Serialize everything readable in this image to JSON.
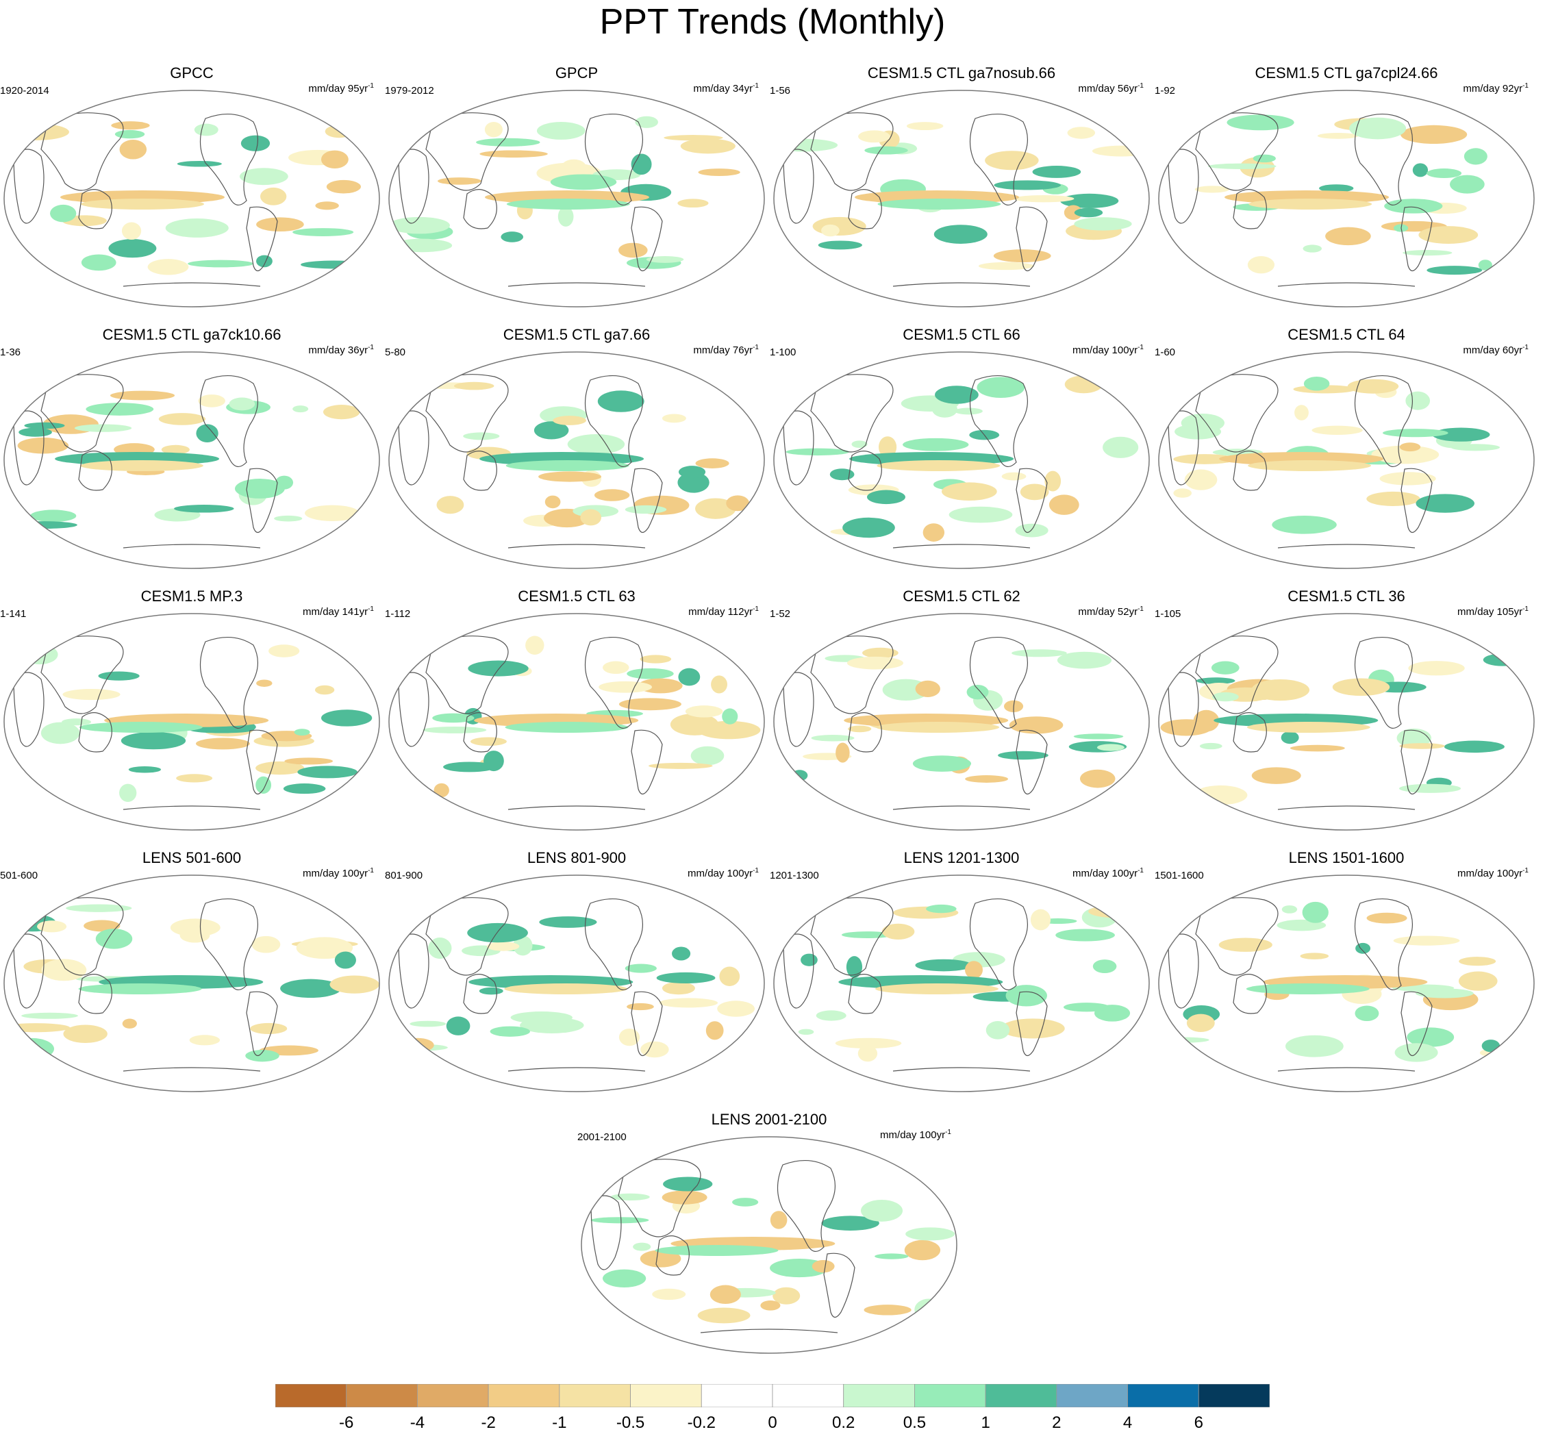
{
  "title": "PPT Trends (Monthly)",
  "units_prefix": "mm/day ",
  "units_suffix": "yr",
  "units_exponent": "-1",
  "colors": {
    "land_outline": "#555555",
    "frame": "#777777",
    "dry": [
      "#b96a2b",
      "#cd8a47",
      "#e0aa66",
      "#f2cc86",
      "#f5e2a4",
      "#fbf3c8"
    ],
    "neutral": "#ffffff",
    "wet": [
      "#c9f7cf",
      "#97ecb8",
      "#4fbc98",
      "#6ea6c6",
      "#0a6ea8",
      "#053a5c"
    ]
  },
  "panels": [
    {
      "title": "GPCC",
      "period": "1920-2014",
      "years": "95"
    },
    {
      "title": "GPCP",
      "period": "1979-2012",
      "years": "34"
    },
    {
      "title": "CESM1.5 CTL ga7nosub.66",
      "period": "1-56",
      "years": "56"
    },
    {
      "title": "CESM1.5 CTL ga7cpl24.66",
      "period": "1-92",
      "years": "92"
    },
    {
      "title": "CESM1.5 CTL ga7ck10.66",
      "period": "1-36",
      "years": "36"
    },
    {
      "title": "CESM1.5 CTL ga7.66",
      "period": "5-80",
      "years": "76"
    },
    {
      "title": "CESM1.5 CTL 66",
      "period": "1-100",
      "years": "100"
    },
    {
      "title": "CESM1.5 CTL 64",
      "period": "1-60",
      "years": "60"
    },
    {
      "title": "CESM1.5 MP.3",
      "period": "1-141",
      "years": "141"
    },
    {
      "title": "CESM1.5 CTL 63",
      "period": "1-112",
      "years": "112"
    },
    {
      "title": "CESM1.5 CTL 62",
      "period": "1-52",
      "years": "52"
    },
    {
      "title": "CESM1.5 CTL 36",
      "period": "1-105",
      "years": "105"
    },
    {
      "title": "LENS 501-600",
      "period": "501-600",
      "years": "100"
    },
    {
      "title": "LENS 801-900",
      "period": "801-900",
      "years": "100"
    },
    {
      "title": "LENS 1201-1300",
      "period": "1201-1300",
      "years": "100"
    },
    {
      "title": "LENS 1501-1600",
      "period": "1501-1600",
      "years": "100"
    },
    {
      "title": "LENS 2001-2100",
      "period": "2001-2100",
      "years": "100"
    }
  ],
  "colorbar": {
    "labels": [
      "-6",
      "-4",
      "-2",
      "-1",
      "-0.5",
      "-0.2",
      "0",
      "0.2",
      "0.5",
      "1",
      "2",
      "4",
      "6"
    ],
    "colors": [
      "#b96a2b",
      "#cd8a47",
      "#e0aa66",
      "#f2cc86",
      "#f5e2a4",
      "#fbf3c8",
      "#ffffff",
      "#ffffff",
      "#c9f7cf",
      "#97ecb8",
      "#4fbc98",
      "#6ea6c6",
      "#0a6ea8",
      "#053a5c"
    ]
  }
}
